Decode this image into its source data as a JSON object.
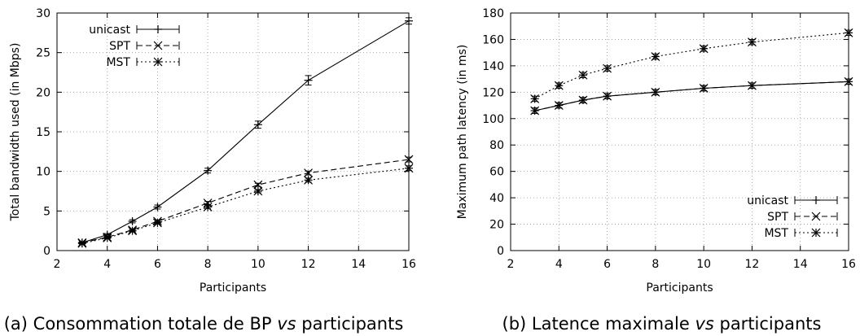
{
  "chart_data": [
    {
      "type": "line",
      "xlabel": "Participants",
      "ylabel": "Total bandwidth used (in Mbps)",
      "xlim": [
        2,
        16
      ],
      "ylim": [
        0,
        30
      ],
      "xticks": [
        2,
        4,
        6,
        8,
        10,
        12,
        14,
        16
      ],
      "yticks": [
        0,
        5,
        10,
        15,
        20,
        25,
        30
      ],
      "grid": true,
      "legend_position": "top-left",
      "caption": {
        "prefix": "(a) Consommation totale de BP ",
        "emph": "vs",
        "suffix": " participants"
      },
      "series": [
        {
          "name": "unicast",
          "marker": "plus",
          "dash": "solid",
          "x": [
            3,
            4,
            5,
            6,
            8,
            10,
            12,
            16
          ],
          "y": [
            1.0,
            2.0,
            3.7,
            5.5,
            10.1,
            15.9,
            21.5,
            29.0
          ],
          "err": [
            0.1,
            0.15,
            0.2,
            0.25,
            0.3,
            0.45,
            0.6,
            0.4
          ]
        },
        {
          "name": "SPT",
          "marker": "cross",
          "dash": "dashed",
          "x": [
            3,
            4,
            5,
            6,
            8,
            10,
            12,
            16
          ],
          "y": [
            1.0,
            1.7,
            2.6,
            3.7,
            6.0,
            8.3,
            9.8,
            11.5
          ],
          "err": [
            0.1,
            0.1,
            0.15,
            0.15,
            0.2,
            0.2,
            0.25,
            0.3
          ]
        },
        {
          "name": "MST",
          "marker": "star",
          "dash": "dotted",
          "x": [
            3,
            4,
            5,
            6,
            8,
            10,
            12,
            16
          ],
          "y": [
            0.9,
            1.6,
            2.5,
            3.5,
            5.5,
            7.5,
            8.9,
            10.4
          ],
          "err": [
            0.1,
            0.1,
            0.15,
            0.15,
            0.2,
            0.2,
            0.25,
            0.3
          ]
        }
      ]
    },
    {
      "type": "line",
      "xlabel": "Participants",
      "ylabel": "Maximum path latency (in ms)",
      "xlim": [
        2,
        16
      ],
      "ylim": [
        0,
        180
      ],
      "xticks": [
        2,
        4,
        6,
        8,
        10,
        12,
        14,
        16
      ],
      "yticks": [
        0,
        20,
        40,
        60,
        80,
        100,
        120,
        140,
        160,
        180
      ],
      "grid": true,
      "legend_position": "bottom-right",
      "caption": {
        "prefix": "(b) Latence maximale ",
        "emph": "vs",
        "suffix": " participants"
      },
      "series": [
        {
          "name": "unicast",
          "marker": "plus",
          "dash": "solid",
          "x": [
            3,
            4,
            5,
            6,
            8,
            10,
            12,
            16
          ],
          "y": [
            106,
            110,
            114,
            117,
            120,
            123,
            125,
            128
          ],
          "err": [
            2,
            2,
            2,
            2,
            2,
            2,
            2,
            2
          ]
        },
        {
          "name": "SPT",
          "marker": "cross",
          "dash": "dashed",
          "x": [
            3,
            4,
            5,
            6,
            8,
            10,
            12,
            16
          ],
          "y": [
            106,
            110,
            114,
            117,
            120,
            123,
            125,
            128
          ],
          "err": [
            2,
            2,
            2,
            2,
            2,
            2,
            2,
            2
          ]
        },
        {
          "name": "MST",
          "marker": "star",
          "dash": "dotted",
          "x": [
            3,
            4,
            5,
            6,
            8,
            10,
            12,
            16
          ],
          "y": [
            115,
            125,
            133,
            138,
            147,
            153,
            158,
            165
          ],
          "err": [
            2,
            2,
            2,
            2,
            2,
            2,
            2,
            2
          ]
        }
      ]
    }
  ]
}
